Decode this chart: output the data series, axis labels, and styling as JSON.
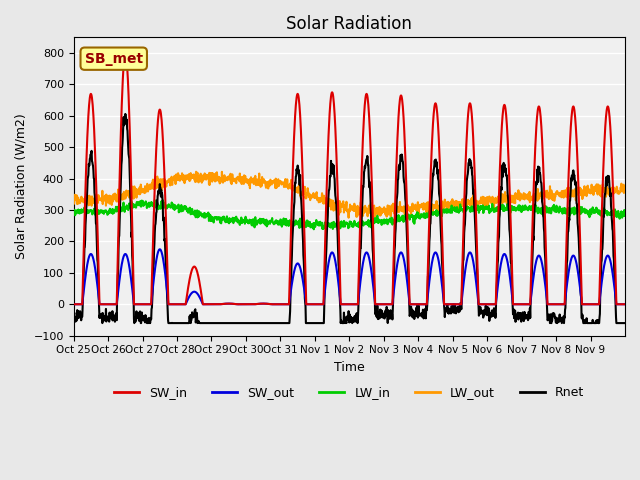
{
  "title": "Solar Radiation",
  "ylabel": "Solar Radiation (W/m2)",
  "xlabel": "Time",
  "ylim": [
    -100,
    850
  ],
  "yticks": [
    -100,
    0,
    100,
    200,
    300,
    400,
    500,
    600,
    700,
    800
  ],
  "background_color": "#e8e8e8",
  "plot_bg_color": "#f0f0f0",
  "label_box_text": "SB_met",
  "label_box_facecolor": "#ffff99",
  "label_box_edgecolor": "#996600",
  "label_box_textcolor": "#990000",
  "line_colors": {
    "SW_in": "#dd0000",
    "SW_out": "#0000dd",
    "LW_in": "#00cc00",
    "LW_out": "#ff9900",
    "Rnet": "#000000"
  },
  "line_widths": {
    "SW_in": 1.5,
    "SW_out": 1.5,
    "LW_in": 1.5,
    "LW_out": 1.5,
    "Rnet": 1.5
  },
  "xtick_labels": [
    "Oct 25",
    "Oct 26",
    "Oct 27",
    "Oct 28",
    "Oct 29",
    "Oct 30",
    "Oct 31",
    "Nov 1",
    "Nov 2",
    "Nov 3",
    "Nov 4",
    "Nov 5",
    "Nov 6",
    "Nov 7",
    "Nov 8",
    "Nov 9"
  ],
  "n_days": 16,
  "hours_per_day": 24,
  "dt_hours": 0.25,
  "peak_vals_SWin": [
    670,
    800,
    620,
    120,
    2,
    2,
    670,
    675,
    670,
    665,
    640,
    640,
    635,
    630,
    630,
    630
  ],
  "peak_vals_SWout": [
    160,
    160,
    175,
    40,
    2,
    2,
    130,
    165,
    165,
    165,
    165,
    165,
    160,
    155,
    155,
    155
  ],
  "LW_in_vals": [
    295,
    320,
    310,
    275,
    263,
    262,
    254,
    253,
    265,
    280,
    300,
    305,
    305,
    300,
    295,
    288
  ],
  "LW_out_vals": [
    335,
    365,
    403,
    408,
    394,
    385,
    343,
    300,
    300,
    305,
    315,
    330,
    340,
    350,
    360,
    362
  ]
}
